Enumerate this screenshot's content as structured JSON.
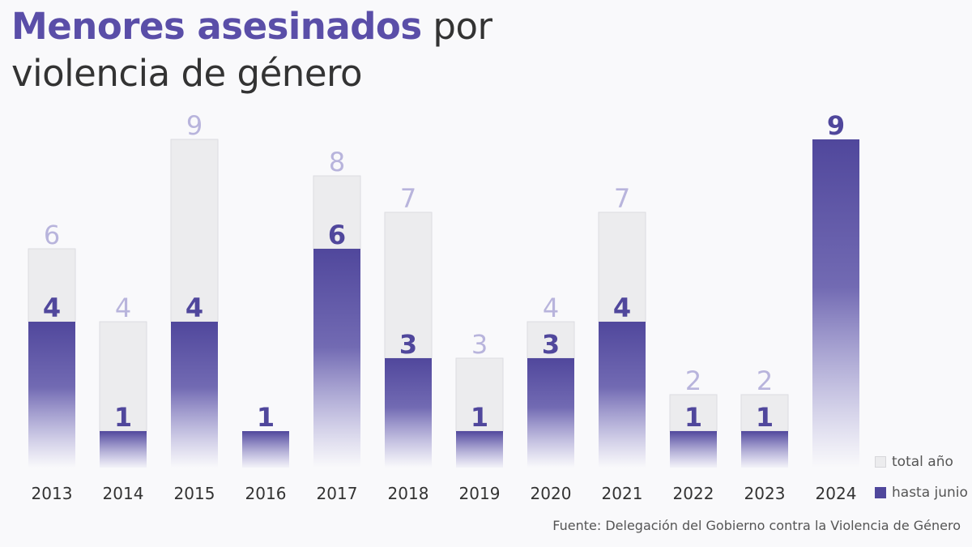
{
  "title": {
    "bold": "Menores asesinados",
    "rest": " por",
    "line2": "violencia de género"
  },
  "colors": {
    "hasta_junio": "#50479c",
    "total_fill": "#ececee",
    "total_label": "#b8b4dc",
    "hasta_label": "#50479c"
  },
  "legend": {
    "total": "total año",
    "hasta": "hasta junio"
  },
  "source": "Fuente: Delegación del Gobierno contra la Violencia de Género",
  "chart_data": {
    "type": "bar",
    "categories": [
      "2013",
      "2014",
      "2015",
      "2016",
      "2017",
      "2018",
      "2019",
      "2020",
      "2021",
      "2022",
      "2023",
      "2024"
    ],
    "series": [
      {
        "name": "total año",
        "values": [
          6,
          4,
          9,
          1,
          8,
          7,
          3,
          4,
          7,
          2,
          2,
          9
        ]
      },
      {
        "name": "hasta junio",
        "values": [
          4,
          1,
          4,
          1,
          6,
          3,
          1,
          3,
          4,
          1,
          1,
          9
        ]
      }
    ],
    "ylim": [
      0,
      9
    ],
    "grid": false,
    "legend_position": "bottom-right"
  }
}
